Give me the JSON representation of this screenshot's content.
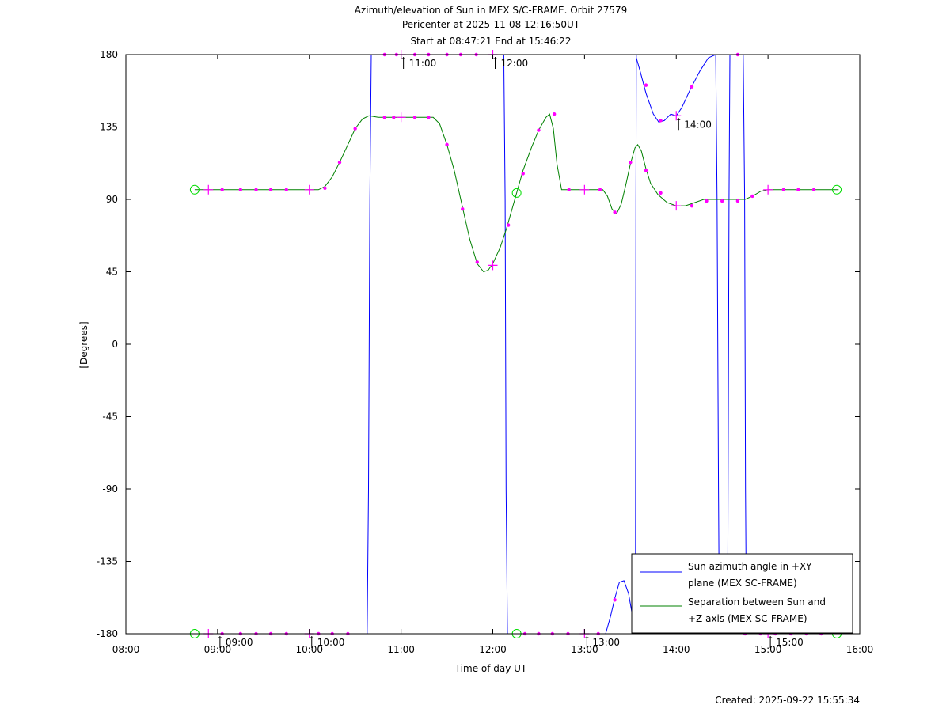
{
  "title_lines": [
    "Azimuth/elevation of Sun in MEX S/C-FRAME.  Orbit 27579",
    "Pericenter at 2025-11-08 12:16:50UT",
    "Start at 08:47:21 End at 15:46:22"
  ],
  "created": "Created: 2025-09-22 15:55:34",
  "colors": {
    "azimuth": "#0000ff",
    "separation": "#008000",
    "marker": "#ff00ff",
    "circle": "#00dd00",
    "axis": "#000000"
  },
  "chart_data": {
    "type": "line",
    "title": "Azimuth/elevation of Sun in MEX S/C-FRAME.  Orbit 27579",
    "xlabel": "Time of day UT",
    "ylabel": "[Degrees]",
    "xlim": [
      8.0,
      16.0
    ],
    "ylim": [
      -180,
      180
    ],
    "xticks": [
      8,
      9,
      10,
      11,
      12,
      13,
      14,
      15,
      16
    ],
    "xtick_labels": [
      "08:00",
      "09:00",
      "10:00",
      "11:00",
      "12:00",
      "13:00",
      "14:00",
      "15:00",
      "16:00"
    ],
    "yticks": [
      180,
      135,
      90,
      45,
      0,
      -45,
      -90,
      -135,
      -180
    ],
    "ytick_labels": [
      "180",
      "135",
      "90",
      "45",
      "0",
      "-45",
      "-90",
      "-135",
      "-180"
    ],
    "grid": false,
    "legend_position": "bottom-right",
    "series": [
      {
        "name": "Sun azimuth angle in +XY plane (MEX SC-FRAME)",
        "legend_lines": [
          "Sun azimuth angle in +XY",
          "plane (MEX SC-FRAME)"
        ],
        "color": "#0000ff",
        "segments": [
          [
            [
              8.75,
              -180
            ],
            [
              10.63,
              -180
            ],
            [
              10.645,
              -90
            ],
            [
              10.66,
              90
            ],
            [
              10.675,
              180
            ],
            [
              12.12,
              180
            ]
          ],
          [
            [
              12.12,
              180
            ],
            [
              12.135,
              90
            ],
            [
              12.145,
              -90
            ],
            [
              12.16,
              -180
            ],
            [
              13.23,
              -180
            ],
            [
              13.28,
              -170
            ],
            [
              13.33,
              -158
            ],
            [
              13.38,
              -148
            ],
            [
              13.43,
              -147
            ],
            [
              13.48,
              -155
            ],
            [
              13.52,
              -168
            ],
            [
              13.555,
              -180
            ],
            [
              13.56,
              90
            ],
            [
              13.565,
              180
            ]
          ],
          [
            [
              13.565,
              178
            ],
            [
              13.6,
              171
            ],
            [
              13.67,
              156
            ],
            [
              13.75,
              143
            ],
            [
              13.81,
              138
            ],
            [
              13.87,
              139
            ],
            [
              13.94,
              143
            ],
            [
              14.0,
              142
            ],
            [
              14.06,
              147
            ],
            [
              14.15,
              158
            ],
            [
              14.26,
              170
            ],
            [
              14.35,
              178
            ],
            [
              14.43,
              180
            ]
          ],
          [
            [
              14.43,
              180
            ],
            [
              14.445,
              90
            ],
            [
              14.46,
              -90
            ],
            [
              14.47,
              -180
            ],
            [
              14.56,
              -180
            ],
            [
              14.575,
              90
            ],
            [
              14.585,
              180
            ],
            [
              14.73,
              180
            ],
            [
              14.745,
              90
            ],
            [
              14.755,
              -90
            ],
            [
              14.765,
              -180
            ],
            [
              15.77,
              -180
            ]
          ]
        ],
        "dot_markers": [
          [
            9.05,
            -180
          ],
          [
            9.25,
            -180
          ],
          [
            9.42,
            -180
          ],
          [
            9.58,
            -180
          ],
          [
            9.75,
            -180
          ],
          [
            10.1,
            -180
          ],
          [
            10.25,
            -180
          ],
          [
            10.42,
            -180
          ],
          [
            10.82,
            180
          ],
          [
            10.95,
            180
          ],
          [
            11.15,
            180
          ],
          [
            11.3,
            180
          ],
          [
            11.5,
            180
          ],
          [
            11.65,
            180
          ],
          [
            11.82,
            180
          ],
          [
            12.35,
            -180
          ],
          [
            12.5,
            -180
          ],
          [
            12.65,
            -180
          ],
          [
            12.82,
            -180
          ],
          [
            13.15,
            -180
          ],
          [
            13.33,
            -159
          ],
          [
            13.67,
            161
          ],
          [
            13.83,
            139
          ],
          [
            14.17,
            160
          ],
          [
            14.67,
            180
          ],
          [
            14.75,
            -180
          ],
          [
            14.92,
            -180
          ],
          [
            15.08,
            -180
          ],
          [
            15.25,
            -180
          ],
          [
            15.42,
            -180
          ],
          [
            15.58,
            -180
          ]
        ],
        "cross_markers": [
          [
            8.9,
            -180
          ],
          [
            10.0,
            -180
          ],
          [
            11.0,
            180
          ],
          [
            12.0,
            180
          ],
          [
            13.0,
            -180
          ],
          [
            14.0,
            142
          ],
          [
            15.0,
            -180
          ]
        ],
        "circle_markers": [
          [
            8.75,
            -180
          ],
          [
            12.26,
            -180
          ],
          [
            15.75,
            -180
          ]
        ]
      },
      {
        "name": "Separation between Sun and +Z axis (MEX SC-FRAME)",
        "legend_lines": [
          "Separation between Sun and",
          "+Z axis (MEX SC-FRAME)"
        ],
        "color": "#008000",
        "segments": [
          [
            [
              8.75,
              96
            ],
            [
              10.0,
              96
            ],
            [
              10.1,
              96
            ],
            [
              10.17,
              98
            ],
            [
              10.25,
              104
            ],
            [
              10.33,
              113
            ],
            [
              10.42,
              124
            ],
            [
              10.5,
              134
            ],
            [
              10.58,
              140
            ],
            [
              10.65,
              142
            ],
            [
              10.75,
              141
            ],
            [
              11.0,
              141
            ],
            [
              11.2,
              141
            ],
            [
              11.35,
              141
            ],
            [
              11.42,
              137
            ],
            [
              11.5,
              124
            ],
            [
              11.58,
              108
            ],
            [
              11.67,
              85
            ],
            [
              11.75,
              65
            ],
            [
              11.83,
              50
            ],
            [
              11.9,
              45
            ],
            [
              11.95,
              46
            ],
            [
              12.0,
              50
            ],
            [
              12.08,
              60
            ],
            [
              12.15,
              72
            ],
            [
              12.25,
              92
            ],
            [
              12.33,
              108
            ],
            [
              12.42,
              122
            ],
            [
              12.5,
              133
            ],
            [
              12.58,
              141
            ],
            [
              12.62,
              143
            ],
            [
              12.66,
              134
            ],
            [
              12.7,
              112
            ],
            [
              12.75,
              96
            ],
            [
              12.82,
              96
            ],
            [
              13.0,
              96
            ],
            [
              13.2,
              96
            ],
            [
              13.25,
              92
            ],
            [
              13.3,
              84
            ],
            [
              13.35,
              81
            ],
            [
              13.4,
              87
            ],
            [
              13.45,
              99
            ],
            [
              13.5,
              112
            ],
            [
              13.55,
              122
            ],
            [
              13.58,
              124
            ],
            [
              13.62,
              120
            ],
            [
              13.67,
              109
            ],
            [
              13.72,
              100
            ],
            [
              13.8,
              93
            ],
            [
              13.9,
              88
            ],
            [
              14.0,
              86
            ],
            [
              14.1,
              86
            ],
            [
              14.2,
              88
            ],
            [
              14.3,
              90
            ],
            [
              14.5,
              90
            ],
            [
              14.67,
              90
            ],
            [
              14.75,
              90
            ],
            [
              14.83,
              92
            ],
            [
              14.92,
              95
            ],
            [
              15.0,
              96
            ],
            [
              15.25,
              96
            ],
            [
              15.5,
              96
            ],
            [
              15.77,
              96
            ]
          ]
        ],
        "dot_markers": [
          [
            9.05,
            96
          ],
          [
            9.25,
            96
          ],
          [
            9.42,
            96
          ],
          [
            9.58,
            96
          ],
          [
            9.75,
            96
          ],
          [
            10.17,
            97
          ],
          [
            10.33,
            113
          ],
          [
            10.5,
            134
          ],
          [
            10.82,
            141
          ],
          [
            10.92,
            141
          ],
          [
            11.15,
            141
          ],
          [
            11.3,
            141
          ],
          [
            11.5,
            124
          ],
          [
            11.67,
            84
          ],
          [
            11.83,
            51
          ],
          [
            12.17,
            74
          ],
          [
            12.33,
            106
          ],
          [
            12.5,
            133
          ],
          [
            12.67,
            143
          ],
          [
            12.83,
            96
          ],
          [
            13.17,
            96
          ],
          [
            13.33,
            82
          ],
          [
            13.5,
            113
          ],
          [
            13.67,
            108
          ],
          [
            13.83,
            94
          ],
          [
            14.17,
            86
          ],
          [
            14.33,
            89
          ],
          [
            14.5,
            89
          ],
          [
            14.67,
            89
          ],
          [
            14.83,
            92
          ],
          [
            15.17,
            96
          ],
          [
            15.33,
            96
          ],
          [
            15.5,
            96
          ]
        ],
        "cross_markers": [
          [
            8.9,
            96
          ],
          [
            10.0,
            96
          ],
          [
            11.0,
            141
          ],
          [
            12.0,
            49
          ],
          [
            13.0,
            96
          ],
          [
            14.0,
            86
          ],
          [
            15.0,
            96
          ]
        ],
        "circle_markers": [
          [
            8.75,
            96
          ],
          [
            12.26,
            94
          ],
          [
            15.75,
            96
          ]
        ]
      }
    ],
    "annotations": [
      {
        "text": "11:00",
        "x": 11.0,
        "y": 180
      },
      {
        "text": "12:00",
        "x": 12.0,
        "y": 180
      },
      {
        "text": "14:00",
        "x": 14.0,
        "y": 142
      },
      {
        "text": "09:00",
        "x": 9.0,
        "y": -180
      },
      {
        "text": "10:00",
        "x": 10.0,
        "y": -180
      },
      {
        "text": "13:00",
        "x": 13.0,
        "y": -180
      },
      {
        "text": "15:00",
        "x": 15.0,
        "y": -180
      }
    ]
  }
}
